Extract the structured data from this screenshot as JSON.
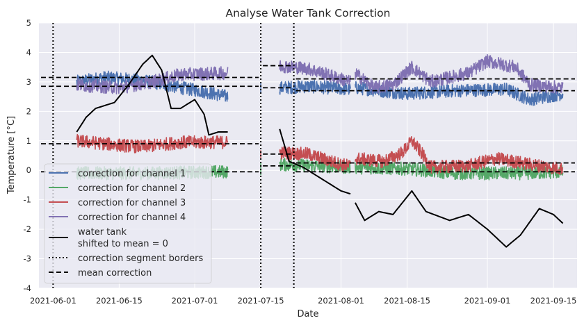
{
  "chart_data": {
    "type": "line",
    "title": "Analyse Water Tank Correction",
    "xlabel": "Date",
    "ylabel": "Temperature [°C]",
    "xlim": [
      "2021-05-29",
      "2021-09-20"
    ],
    "ylim": [
      -4,
      5
    ],
    "yticks": [
      -4,
      -3,
      -2,
      -1,
      0,
      1,
      2,
      3,
      4,
      5
    ],
    "xticks": [
      "2021-06-01",
      "2021-06-15",
      "2021-07-01",
      "2021-07-15",
      "2021-08-01",
      "2021-08-15",
      "2021-09-01",
      "2021-09-15"
    ],
    "grid": true,
    "legend_position": "lower-left",
    "colors": {
      "background": "#eaeaf2",
      "channel_1": "#4c72b0",
      "channel_2": "#55a868",
      "channel_3": "#c44e52",
      "channel_4": "#8172b3",
      "water_tank": "#000000"
    },
    "segments": {
      "borders": [
        "2021-06-01",
        "2021-07-15",
        "2021-07-22"
      ],
      "ranges": [
        [
          "2021-06-06",
          "2021-07-08"
        ],
        [
          "2021-07-15",
          "2021-07-15"
        ],
        [
          "2021-07-19",
          "2021-08-03"
        ],
        [
          "2021-08-04",
          "2021-09-17"
        ]
      ]
    },
    "series": [
      {
        "name": "correction for channel 1",
        "key": "channel_1",
        "style": "noisy",
        "points": [
          [
            "2021-06-06",
            3.0
          ],
          [
            "2021-06-12",
            3.15
          ],
          [
            "2021-06-20",
            3.05
          ],
          [
            "2021-06-28",
            2.8
          ],
          [
            "2021-07-02",
            2.7
          ],
          [
            "2021-07-08",
            2.5
          ],
          [
            "2021-07-15",
            2.8
          ],
          [
            "2021-07-19",
            2.8
          ],
          [
            "2021-07-25",
            2.85
          ],
          [
            "2021-08-03",
            2.75
          ],
          [
            "2021-08-04",
            2.8
          ],
          [
            "2021-08-15",
            2.6
          ],
          [
            "2021-08-25",
            2.7
          ],
          [
            "2021-09-05",
            2.75
          ],
          [
            "2021-09-10",
            2.4
          ],
          [
            "2021-09-17",
            2.6
          ]
        ]
      },
      {
        "name": "correction for channel 2",
        "key": "channel_2",
        "style": "noisy",
        "points": [
          [
            "2021-06-06",
            -0.1
          ],
          [
            "2021-06-20",
            -0.1
          ],
          [
            "2021-07-08",
            -0.05
          ],
          [
            "2021-07-15",
            0.05
          ],
          [
            "2021-07-19",
            0.2
          ],
          [
            "2021-08-03",
            0.1
          ],
          [
            "2021-08-04",
            0.1
          ],
          [
            "2021-08-15",
            0.05
          ],
          [
            "2021-08-25",
            -0.1
          ],
          [
            "2021-09-10",
            -0.1
          ],
          [
            "2021-09-17",
            -0.05
          ]
        ]
      },
      {
        "name": "correction for channel 3",
        "key": "channel_3",
        "style": "noisy",
        "points": [
          [
            "2021-06-06",
            1.0
          ],
          [
            "2021-06-15",
            0.85
          ],
          [
            "2021-06-20",
            0.8
          ],
          [
            "2021-06-28",
            0.95
          ],
          [
            "2021-07-08",
            0.95
          ],
          [
            "2021-07-15",
            0.6
          ],
          [
            "2021-07-19",
            0.6
          ],
          [
            "2021-07-25",
            0.55
          ],
          [
            "2021-08-01",
            0.2
          ],
          [
            "2021-08-03",
            0.15
          ],
          [
            "2021-08-04",
            0.4
          ],
          [
            "2021-08-10",
            0.3
          ],
          [
            "2021-08-14",
            0.6
          ],
          [
            "2021-08-16",
            1.0
          ],
          [
            "2021-08-18",
            0.6
          ],
          [
            "2021-08-20",
            0.1
          ],
          [
            "2021-08-28",
            0.15
          ],
          [
            "2021-09-03",
            0.4
          ],
          [
            "2021-09-10",
            0.2
          ],
          [
            "2021-09-17",
            0.05
          ]
        ]
      },
      {
        "name": "correction for channel 4",
        "key": "channel_4",
        "style": "noisy",
        "points": [
          [
            "2021-06-06",
            2.9
          ],
          [
            "2021-06-15",
            2.8
          ],
          [
            "2021-06-22",
            3.0
          ],
          [
            "2021-06-28",
            3.25
          ],
          [
            "2021-07-08",
            3.3
          ],
          [
            "2021-07-15",
            3.75
          ],
          [
            "2021-07-19",
            3.55
          ],
          [
            "2021-07-25",
            3.45
          ],
          [
            "2021-08-03",
            3.0
          ],
          [
            "2021-08-04",
            3.3
          ],
          [
            "2021-08-08",
            2.8
          ],
          [
            "2021-08-12",
            2.9
          ],
          [
            "2021-08-16",
            3.5
          ],
          [
            "2021-08-20",
            3.0
          ],
          [
            "2021-08-28",
            3.3
          ],
          [
            "2021-09-01",
            3.7
          ],
          [
            "2021-09-07",
            3.5
          ],
          [
            "2021-09-10",
            2.9
          ],
          [
            "2021-09-17",
            2.8
          ]
        ]
      },
      {
        "name": "water tank\nshifted to mean = 0",
        "key": "water_tank",
        "style": "smooth",
        "points": [
          [
            "2021-06-06",
            1.3
          ],
          [
            "2021-06-08",
            1.8
          ],
          [
            "2021-06-10",
            2.1
          ],
          [
            "2021-06-14",
            2.3
          ],
          [
            "2021-06-17",
            2.9
          ],
          [
            "2021-06-20",
            3.6
          ],
          [
            "2021-06-22",
            3.9
          ],
          [
            "2021-06-24",
            3.4
          ],
          [
            "2021-06-26",
            2.1
          ],
          [
            "2021-06-28",
            2.1
          ],
          [
            "2021-07-01",
            2.4
          ],
          [
            "2021-07-03",
            1.9
          ],
          [
            "2021-07-04",
            1.2
          ],
          [
            "2021-07-06",
            1.3
          ],
          [
            "2021-07-08",
            1.3
          ],
          [
            "2021-07-15",
            1.2
          ],
          [
            "2021-07-19",
            1.4
          ],
          [
            "2021-07-21",
            0.3
          ],
          [
            "2021-07-24",
            0.1
          ],
          [
            "2021-07-28",
            -0.3
          ],
          [
            "2021-08-01",
            -0.7
          ],
          [
            "2021-08-03",
            -0.8
          ],
          [
            "2021-08-06",
            -1.7
          ],
          [
            "2021-08-09",
            -1.4
          ],
          [
            "2021-08-12",
            -1.5
          ],
          [
            "2021-08-15",
            -0.9
          ],
          [
            "2021-08-16",
            -0.7
          ],
          [
            "2021-08-19",
            -1.4
          ],
          [
            "2021-08-24",
            -1.7
          ],
          [
            "2021-08-28",
            -1.5
          ],
          [
            "2021-09-01",
            -2.0
          ],
          [
            "2021-09-05",
            -2.6
          ],
          [
            "2021-09-08",
            -2.2
          ],
          [
            "2021-09-12",
            -1.3
          ],
          [
            "2021-09-15",
            -1.5
          ],
          [
            "2021-09-17",
            -1.8
          ]
        ]
      }
    ],
    "mean_lines": [
      {
        "segment": 0,
        "values": [
          3.15,
          2.85,
          0.9,
          -0.05
        ]
      },
      {
        "segment": 1,
        "values": [
          3.55,
          2.8,
          0.55,
          0.15
        ]
      },
      {
        "segment": 2,
        "values": [
          3.1,
          2.7,
          0.25,
          -0.05
        ]
      }
    ],
    "legend": [
      {
        "key": "channel_1",
        "label": "correction for channel 1",
        "style": "solid"
      },
      {
        "key": "channel_2",
        "label": "correction for channel 2",
        "style": "solid"
      },
      {
        "key": "channel_3",
        "label": "correction for channel 3",
        "style": "solid"
      },
      {
        "key": "channel_4",
        "label": "correction for channel 4",
        "style": "solid"
      },
      {
        "key": "water_tank",
        "label": "water tank\nshifted to mean = 0",
        "style": "solid"
      },
      {
        "key": "segment_borders",
        "label": "correction segment borders",
        "style": "dotted"
      },
      {
        "key": "mean_correction",
        "label": "mean correction",
        "style": "dashed"
      }
    ]
  }
}
